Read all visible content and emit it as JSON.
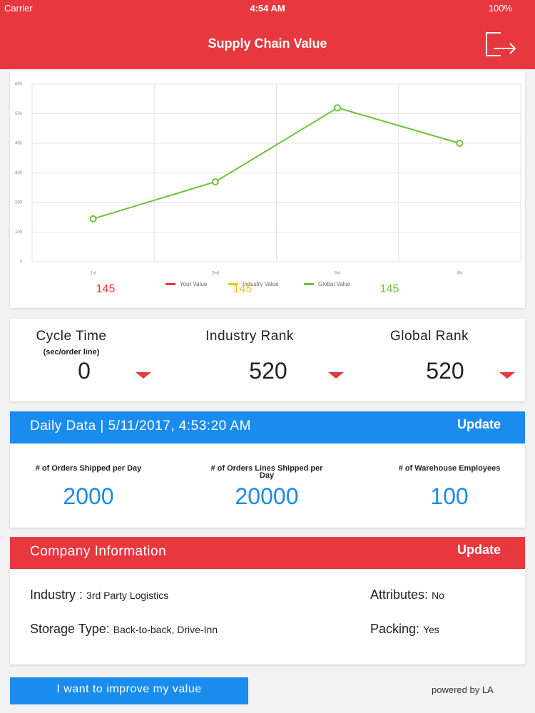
{
  "status_bar": {
    "carrier": "Carrier",
    "time": "4:54 AM",
    "battery": "100%"
  },
  "header": {
    "title": "Supply Chain Value"
  },
  "chart_data": {
    "type": "line",
    "categories": [
      "1st",
      "2nd",
      "3rd",
      "4th"
    ],
    "series": [
      {
        "name": "Your Value",
        "color": "#e8383f",
        "values": [
          null,
          null,
          null,
          null
        ]
      },
      {
        "name": "Industry Value",
        "color": "#f5c518",
        "values": [
          null,
          null,
          null,
          null
        ]
      },
      {
        "name": "Global Value",
        "color": "#6cc23a",
        "values": [
          145,
          270,
          520,
          400
        ]
      }
    ],
    "ylim": [
      0,
      600
    ],
    "yticks": [
      0,
      100,
      200,
      300,
      400,
      500,
      600
    ],
    "grid": true,
    "legend": "bottom"
  },
  "chart_totals": [
    {
      "value": 145,
      "color": "#e8383f"
    },
    {
      "value": 145,
      "color": "#f5c518"
    },
    {
      "value": 145,
      "color": "#6cc23a"
    }
  ],
  "ranks": [
    {
      "title": "Cycle Time",
      "subtitle": "(sec/order line)",
      "value": 0
    },
    {
      "title": "Industry Rank",
      "value": 520
    },
    {
      "title": "Global Rank",
      "value": 520
    }
  ],
  "daily": {
    "title": "Daily Data | 5/11/2017, 4:53:20 AM",
    "action": "Update",
    "metrics": [
      {
        "label": "# of Orders Shipped per Day",
        "value": 2000
      },
      {
        "label": "# of Orders Lines Shipped per Day",
        "value": 20000
      },
      {
        "label": "# of Warehouse Employees",
        "value": 100
      }
    ]
  },
  "company": {
    "title": "Company Information",
    "action": "Update",
    "fields": [
      {
        "label": "Industry :",
        "value": "3rd Party Logistics"
      },
      {
        "label": "Storage Type:",
        "value": "Back-to-back, Drive-Inn"
      },
      {
        "label": "Attributes:",
        "value": "No"
      },
      {
        "label": "Packing:",
        "value": "Yes"
      }
    ]
  },
  "footer": {
    "button": "I want to improve my value",
    "credit": "powered by LA"
  }
}
